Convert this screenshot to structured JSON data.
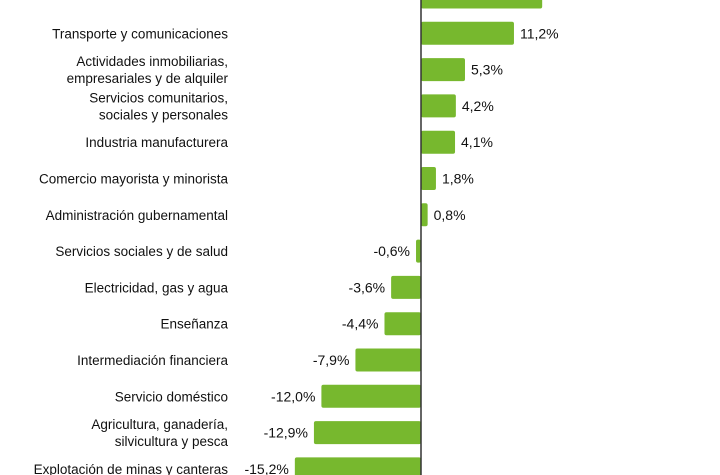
{
  "chart_data": {
    "type": "bar",
    "orientation": "horizontal",
    "bar_color": "#77b82e",
    "axis_color": "#333333",
    "categories": [
      "",
      "Transporte y comunicaciones",
      "Actividades inmobiliarias,|empresariales y de alquiler",
      "Servicios comunitarios,|sociales y personales",
      "Industria manufacturera",
      "Comercio mayorista y minorista",
      "Administración gubernamental",
      "Servicios sociales y de salud",
      "Electricidad, gas y agua",
      "Enseñanza",
      "Intermediación financiera",
      "Servicio doméstico",
      "Agricultura, ganadería,|silvicultura y pesca",
      "Explotación de minas y canteras"
    ],
    "values": [
      14.6,
      11.2,
      5.3,
      4.2,
      4.1,
      1.8,
      0.8,
      -0.6,
      -3.6,
      -4.4,
      -7.9,
      -12.0,
      -12.9,
      -15.2
    ],
    "labels": [
      "",
      "11,2%",
      "5,3%",
      "4,2%",
      "4,1%",
      "1,8%",
      "0,8%",
      "-0,6%",
      "-3,6%",
      "-4,4%",
      "-7,9%",
      "-12,0%",
      "-12,9%",
      "-15,2%"
    ]
  }
}
